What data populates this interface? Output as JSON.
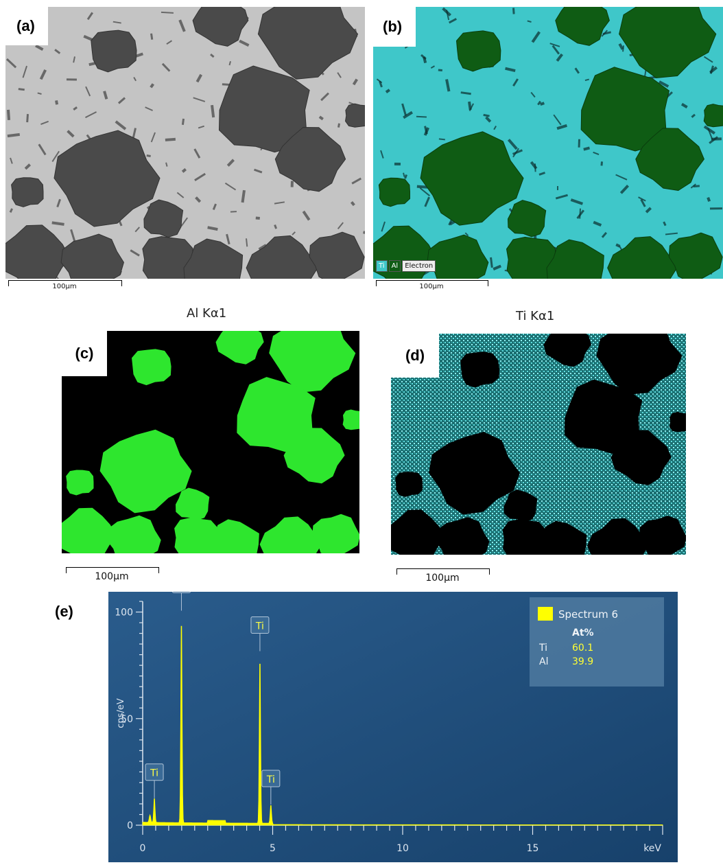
{
  "panels": {
    "a": {
      "label": "(a)",
      "scale": "100µm"
    },
    "b": {
      "label": "(b)",
      "scale": "100µm",
      "legend": [
        "Ti",
        "Al",
        "Electron"
      ]
    },
    "c": {
      "label": "(c)",
      "title": "Al Kα1",
      "scale": "100µm"
    },
    "d": {
      "label": "(d)",
      "title": "Ti Kα1",
      "scale": "100µm"
    },
    "e": {
      "label": "(e)"
    }
  },
  "colors": {
    "ti": "#3fc7c9",
    "al_map": "#2ee62e",
    "al_overlay": "#0f5c14",
    "bse_dark": "#4a4a4a",
    "bse_light": "#c4c4c4",
    "spectrum_bg": "#1f4f7c",
    "spectrum_fill": "#ffff00"
  },
  "chart_data": {
    "type": "area",
    "xlabel": "keV",
    "ylabel": "cps/eV",
    "xlim": [
      0,
      20
    ],
    "ylim": [
      0,
      105
    ],
    "x_ticks": [
      0,
      5,
      10,
      15
    ],
    "y_ticks": [
      0,
      50,
      100
    ],
    "legend": {
      "series": "Spectrum 6",
      "header": "At%",
      "rows": [
        {
          "element": "Ti",
          "value": "60.1"
        },
        {
          "element": "Al",
          "value": "39.9"
        }
      ]
    },
    "peaks": [
      {
        "label": "Ti",
        "kev": 0.45,
        "height": 12
      },
      {
        "label": "Al",
        "kev": 1.49,
        "height": 100
      },
      {
        "label": "Ti",
        "kev": 4.51,
        "height": 81
      },
      {
        "label": "Ti",
        "kev": 4.93,
        "height": 9
      }
    ]
  }
}
